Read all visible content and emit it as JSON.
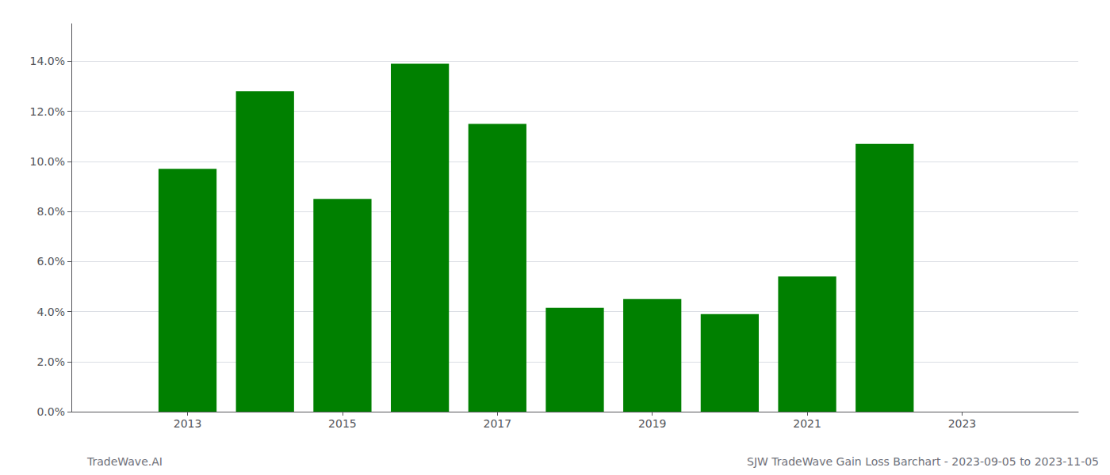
{
  "chart_data": {
    "type": "bar",
    "x": [
      2013,
      2014,
      2015,
      2016,
      2017,
      2018,
      2019,
      2020,
      2021,
      2022
    ],
    "values": [
      0.097,
      0.128,
      0.085,
      0.139,
      0.115,
      0.0415,
      0.045,
      0.039,
      0.054,
      0.107
    ],
    "color": "#008000",
    "xlim": [
      2011.5,
      2024.5
    ],
    "xticks": [
      2013,
      2015,
      2017,
      2019,
      2021,
      2023
    ],
    "ylim": [
      0,
      0.155
    ],
    "yticks": [
      {
        "value": 0.0,
        "label": "0.0%"
      },
      {
        "value": 0.02,
        "label": "2.0%"
      },
      {
        "value": 0.04,
        "label": "4.0%"
      },
      {
        "value": 0.06,
        "label": "6.0%"
      },
      {
        "value": 0.08,
        "label": "8.0%"
      },
      {
        "value": 0.1,
        "label": "10.0%"
      },
      {
        "value": 0.12,
        "label": "12.0%"
      },
      {
        "value": 0.14,
        "label": "14.0%"
      }
    ],
    "grid": true,
    "annotations": [
      "TradeWave.AI",
      "SJW TradeWave Gain Loss Barchart - 2023-09-05 to 2023-11-05"
    ]
  }
}
